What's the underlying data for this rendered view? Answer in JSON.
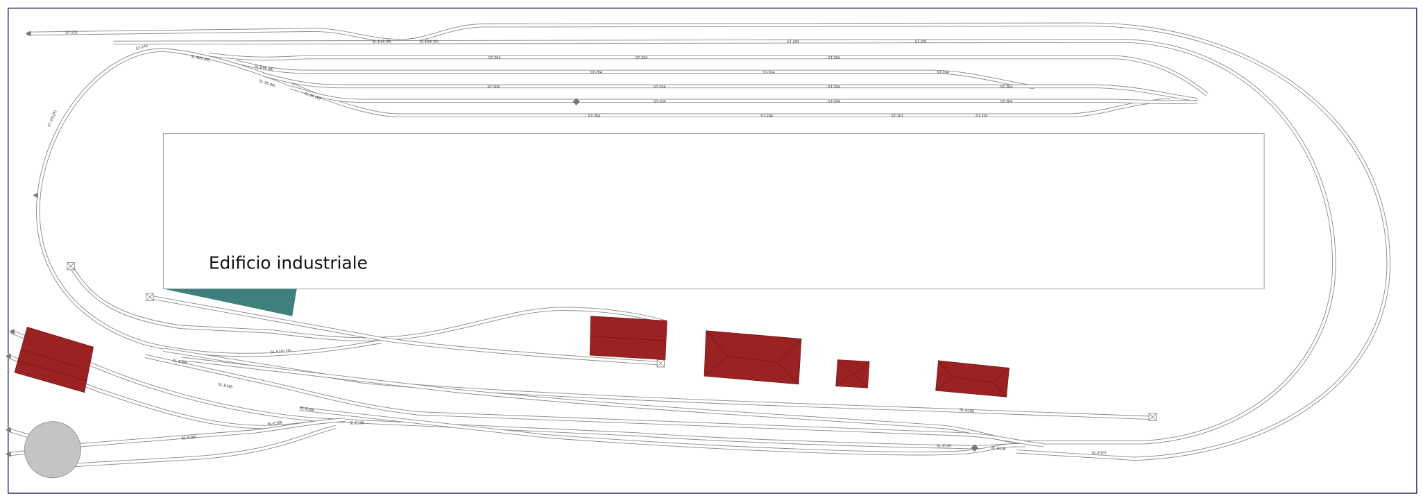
{
  "building": {
    "label": "Edificio industriale"
  },
  "colors": {
    "frame": "#2e2e6e",
    "roof": "#9b2222",
    "roof_lines": "#6e1414",
    "platform": "#3f7f7c",
    "turntable": "#c4c4c6",
    "rail": "#8a8a8a"
  },
  "track_labels": [
    "ST-201",
    "ST-244",
    "SL-E95 (M)",
    "SL-E96 (M)",
    "SL-E95 (M)",
    "SL-E96 (M)",
    "SL-95 (M)",
    "SL-95 (M)",
    "ST-231(R)",
    "ST-204",
    "ST-201",
    "ST-204",
    "ST-204",
    "ST-204",
    "ST-204",
    "ST-204",
    "ST-204",
    "ST-204",
    "ST-204",
    "ST-204",
    "ST-204",
    "ST-204",
    "ST-204",
    "ST-204",
    "ST-204",
    "ST-204",
    "ST-201",
    "ST-201",
    "SL-E196",
    "SL-E191 (S)",
    "SL-E196",
    "SL-E196",
    "SL-E196",
    "SL-E195",
    "SL-E196",
    "SL-E195",
    "SL-E195",
    "SL-E195",
    "SL-E197"
  ]
}
